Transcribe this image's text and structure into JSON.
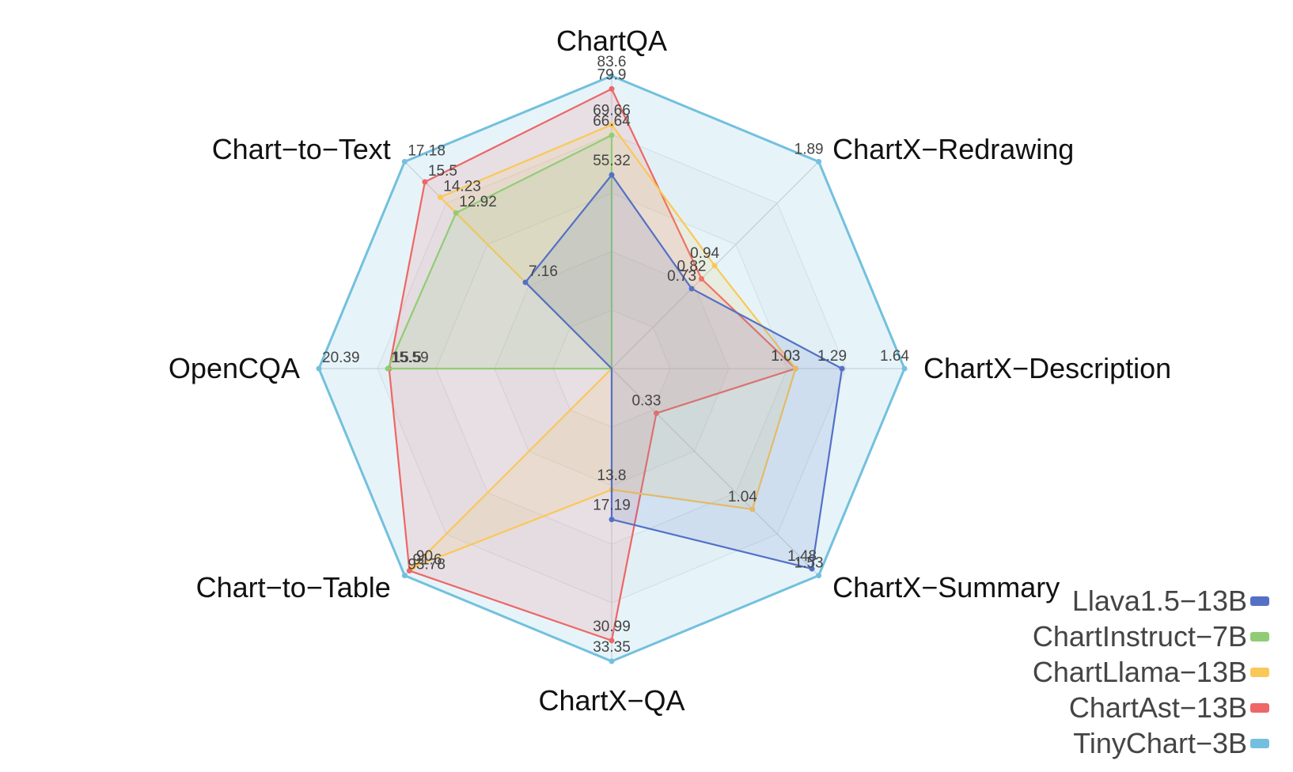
{
  "chart_data": {
    "type": "radar",
    "axes": [
      "ChartQA",
      "ChartX−Redrawing",
      "ChartX−Description",
      "ChartX−Summary",
      "ChartX−QA",
      "Chart−to−Table",
      "OpenCQA",
      "Chart−to−Text"
    ],
    "axis_max": [
      83.6,
      1.89,
      1.64,
      1.53,
      33.35,
      93.78,
      20.39,
      17.18
    ],
    "series": [
      {
        "name": "Llava1.5−13B",
        "color": "#5470c6",
        "values": [
          55.32,
          0.73,
          1.29,
          1.48,
          17.19,
          null,
          null,
          7.16
        ],
        "labels": [
          "55.32",
          "0.73",
          "1.29",
          "1.48",
          "17.19",
          "",
          "",
          "7.16"
        ]
      },
      {
        "name": "ChartInstruct−7B",
        "color": "#91cc75",
        "values": [
          66.64,
          null,
          null,
          null,
          null,
          null,
          15.59,
          12.92
        ],
        "labels": [
          "66.64",
          "",
          "",
          "",
          "",
          "",
          "15.59",
          "12.92"
        ]
      },
      {
        "name": "ChartLlama−13B",
        "color": "#fac858",
        "values": [
          69.66,
          0.94,
          1.03,
          1.04,
          13.8,
          90,
          null,
          14.23
        ],
        "labels": [
          "69.66",
          "0.94",
          "1.03",
          "1.04",
          "13.8",
          "90",
          "",
          "14.23"
        ]
      },
      {
        "name": "ChartAst−13B",
        "color": "#ee6666",
        "values": [
          79.9,
          0.82,
          1.03,
          0.33,
          30.99,
          91.6,
          15.5,
          15.5
        ],
        "labels": [
          "79.9",
          "0.82",
          "1.03",
          "0.33",
          "30.99",
          "91.6",
          "15.5",
          "15.5"
        ]
      },
      {
        "name": "TinyChart−3B",
        "color": "#73c0de",
        "values": [
          83.6,
          1.89,
          1.64,
          1.53,
          33.35,
          93.78,
          20.39,
          17.18
        ],
        "labels": [
          "83.6",
          "1.89",
          "1.64",
          "1.53",
          "33.35",
          "93.78",
          "20.39",
          "17.18"
        ]
      }
    ],
    "legend_position": "bottom-right",
    "grid": true
  }
}
